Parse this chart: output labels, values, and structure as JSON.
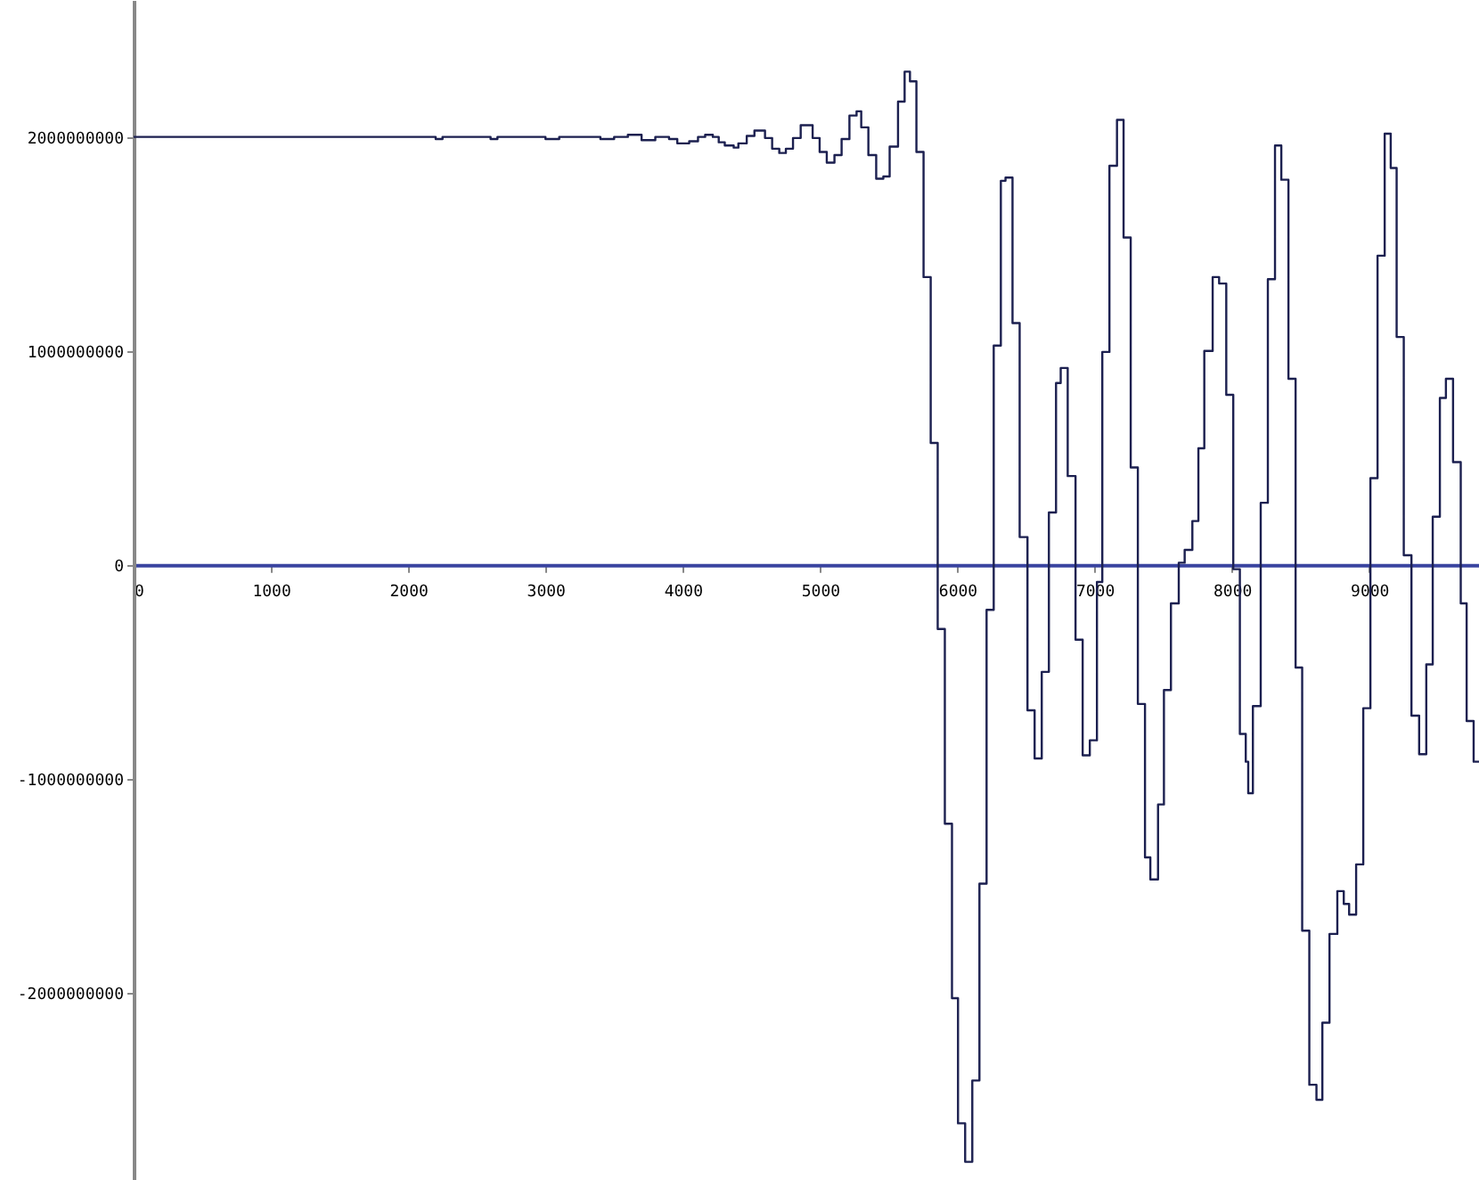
{
  "chart_data": {
    "type": "step",
    "color": "#1c2050",
    "x": [
      0,
      2200,
      2250,
      2600,
      2650,
      3000,
      3100,
      3400,
      3500,
      3600,
      3700,
      3800,
      3900,
      3960,
      4047,
      4111,
      4163,
      4219,
      4262,
      4306,
      4371,
      4405,
      4466,
      4522,
      4599,
      4651,
      4703,
      4751,
      4803,
      4859,
      4946,
      4997,
      5049,
      5105,
      5157,
      5214,
      5266,
      5300,
      5352,
      5409,
      5461,
      5507,
      5568,
      5616,
      5655,
      5702,
      5754,
      5806,
      5857,
      5909,
      5961,
      6005,
      6057,
      6109,
      6161,
      6213,
      6265,
      6317,
      6351,
      6402,
      6454,
      6511,
      6563,
      6615,
      6667,
      6719,
      6753,
      6804,
      6861,
      6913,
      6965,
      7017,
      7056,
      7108,
      7163,
      7211,
      7263,
      7315,
      7367,
      7406,
      7462,
      7505,
      7556,
      7613,
      7656,
      7712,
      7756,
      7799,
      7860,
      7907,
      7959,
      8010,
      8058,
      8101,
      8119,
      8153,
      8210,
      8262,
      8314,
      8360,
      8412,
      8464,
      8512,
      8564,
      8616,
      8659,
      8711,
      8768,
      8815,
      8854,
      8905,
      8957,
      9009,
      9061,
      9113,
      9157,
      9200,
      9252,
      9308,
      9364,
      9416,
      9463,
      9515,
      9559,
      9611,
      9667,
      9710,
      9761,
      9800
    ],
    "values": [
      2000000000,
      1990000000,
      2000000000,
      1990000000,
      2000000000,
      1990000000,
      2000000000,
      1990000000,
      2000000000,
      2010000000,
      1985000000,
      2000000000,
      1990000000,
      1970000000,
      1980000000,
      2000000000,
      2010000000,
      2000000000,
      1975000000,
      1960000000,
      1950000000,
      1970000000,
      2005000000,
      2030000000,
      1995000000,
      1945000000,
      1925000000,
      1945000000,
      1995000000,
      2055000000,
      1995000000,
      1930000000,
      1880000000,
      1915000000,
      1990000000,
      2100000000,
      2120000000,
      2045000000,
      1915000000,
      1805000000,
      1815000000,
      1955000000,
      2165000000,
      2305000000,
      2260000000,
      1930000000,
      1345000000,
      570000000,
      -300000000,
      -1210000000,
      -2025000000,
      -2610000000,
      -2790000000,
      -2410000000,
      -1490000000,
      -210000000,
      1025000000,
      1795000000,
      1810000000,
      1130000000,
      130000000,
      -680000000,
      -905000000,
      -500000000,
      245000000,
      850000000,
      920000000,
      415000000,
      -350000000,
      -890000000,
      -820000000,
      -80000000,
      995000000,
      1865000000,
      2080000000,
      1530000000,
      455000000,
      -650000000,
      -1367000000,
      -1470000000,
      -1120000000,
      -585000000,
      -180000000,
      10000000,
      70000000,
      205000000,
      545000000,
      1000000000,
      1345000000,
      1315000000,
      795000000,
      -20000000,
      -790000000,
      -920000000,
      -1067000000,
      -660000000,
      290000000,
      1335000000,
      1960000000,
      1800000000,
      870000000,
      -480000000,
      -1710000000,
      -2430000000,
      -2500000000,
      -2140000000,
      -1725000000,
      -1525000000,
      -1585000000,
      -1635000000,
      -1400000000,
      -670000000,
      405000000,
      1445000000,
      2015000000,
      1855000000,
      1065000000,
      45000000,
      -705000000,
      -885000000,
      -465000000,
      225000000,
      780000000,
      870000000,
      480000000,
      -180000000,
      -730000000,
      -920000000,
      -920000000
    ],
    "xlim": [
      0,
      9800
    ],
    "ylim": [
      -2875000000,
      2640000000
    ],
    "xticks": [
      0,
      1000,
      2000,
      3000,
      4000,
      5000,
      6000,
      7000,
      8000,
      9000
    ],
    "yticks": [
      -2000000000,
      -1000000000,
      0,
      1000000000,
      2000000000
    ],
    "grid": false
  }
}
